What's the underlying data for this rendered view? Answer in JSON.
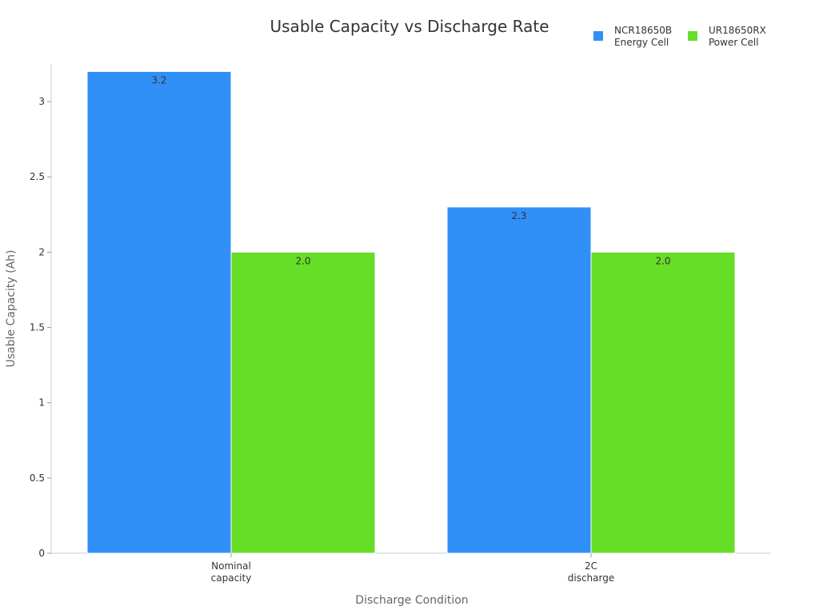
{
  "chart_data": {
    "type": "bar",
    "title": "Usable Capacity vs Discharge Rate",
    "xlabel": "Discharge Condition",
    "ylabel": "Usable Capacity (Ah)",
    "categories": [
      [
        "Nominal",
        "capacity"
      ],
      [
        "2C",
        "discharge"
      ]
    ],
    "series": [
      {
        "name": [
          "NCR18650B",
          "Energy Cell"
        ],
        "values": [
          3.2,
          2.3
        ],
        "labels": [
          "3.2",
          "2.3"
        ],
        "color": "#3090f8"
      },
      {
        "name": [
          "UR18650RX",
          "Power Cell"
        ],
        "values": [
          2.0,
          2.0
        ],
        "labels": [
          "2.0",
          "2.0"
        ],
        "color": "#66dd26"
      }
    ],
    "ylim": [
      0,
      3.25
    ],
    "yticks": [
      0,
      0.5,
      1,
      1.5,
      2,
      2.5,
      3
    ],
    "ytick_labels": [
      "0",
      "0.5",
      "1",
      "1.5",
      "2",
      "2.5",
      "3"
    ],
    "grid": false,
    "legend_position": "top-right"
  }
}
